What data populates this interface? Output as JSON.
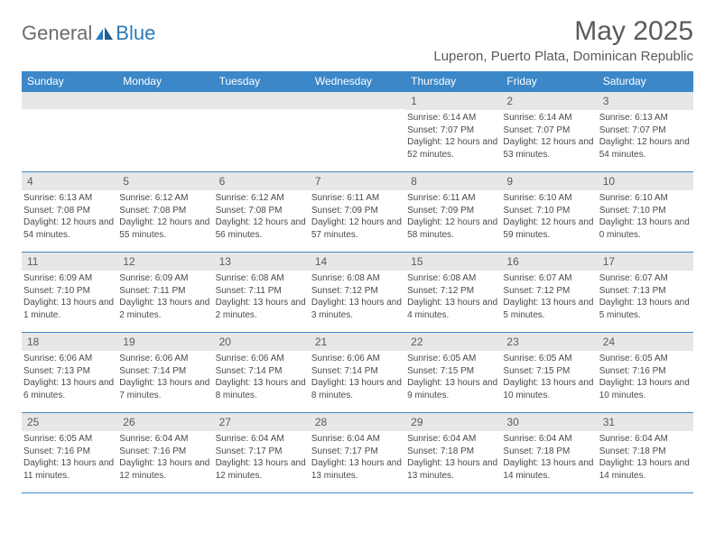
{
  "brand": {
    "part1": "General",
    "part2": "Blue"
  },
  "title": "May 2025",
  "location": "Luperon, Puerto Plata, Dominican Republic",
  "header_bg": "#3b87c8",
  "daynum_bg": "#e7e7e7",
  "weekdays": [
    "Sunday",
    "Monday",
    "Tuesday",
    "Wednesday",
    "Thursday",
    "Friday",
    "Saturday"
  ],
  "weeks": [
    [
      {
        "n": "",
        "sr": "",
        "ss": "",
        "dl": ""
      },
      {
        "n": "",
        "sr": "",
        "ss": "",
        "dl": ""
      },
      {
        "n": "",
        "sr": "",
        "ss": "",
        "dl": ""
      },
      {
        "n": "",
        "sr": "",
        "ss": "",
        "dl": ""
      },
      {
        "n": "1",
        "sr": "Sunrise: 6:14 AM",
        "ss": "Sunset: 7:07 PM",
        "dl": "Daylight: 12 hours and 52 minutes."
      },
      {
        "n": "2",
        "sr": "Sunrise: 6:14 AM",
        "ss": "Sunset: 7:07 PM",
        "dl": "Daylight: 12 hours and 53 minutes."
      },
      {
        "n": "3",
        "sr": "Sunrise: 6:13 AM",
        "ss": "Sunset: 7:07 PM",
        "dl": "Daylight: 12 hours and 54 minutes."
      }
    ],
    [
      {
        "n": "4",
        "sr": "Sunrise: 6:13 AM",
        "ss": "Sunset: 7:08 PM",
        "dl": "Daylight: 12 hours and 54 minutes."
      },
      {
        "n": "5",
        "sr": "Sunrise: 6:12 AM",
        "ss": "Sunset: 7:08 PM",
        "dl": "Daylight: 12 hours and 55 minutes."
      },
      {
        "n": "6",
        "sr": "Sunrise: 6:12 AM",
        "ss": "Sunset: 7:08 PM",
        "dl": "Daylight: 12 hours and 56 minutes."
      },
      {
        "n": "7",
        "sr": "Sunrise: 6:11 AM",
        "ss": "Sunset: 7:09 PM",
        "dl": "Daylight: 12 hours and 57 minutes."
      },
      {
        "n": "8",
        "sr": "Sunrise: 6:11 AM",
        "ss": "Sunset: 7:09 PM",
        "dl": "Daylight: 12 hours and 58 minutes."
      },
      {
        "n": "9",
        "sr": "Sunrise: 6:10 AM",
        "ss": "Sunset: 7:10 PM",
        "dl": "Daylight: 12 hours and 59 minutes."
      },
      {
        "n": "10",
        "sr": "Sunrise: 6:10 AM",
        "ss": "Sunset: 7:10 PM",
        "dl": "Daylight: 13 hours and 0 minutes."
      }
    ],
    [
      {
        "n": "11",
        "sr": "Sunrise: 6:09 AM",
        "ss": "Sunset: 7:10 PM",
        "dl": "Daylight: 13 hours and 1 minute."
      },
      {
        "n": "12",
        "sr": "Sunrise: 6:09 AM",
        "ss": "Sunset: 7:11 PM",
        "dl": "Daylight: 13 hours and 2 minutes."
      },
      {
        "n": "13",
        "sr": "Sunrise: 6:08 AM",
        "ss": "Sunset: 7:11 PM",
        "dl": "Daylight: 13 hours and 2 minutes."
      },
      {
        "n": "14",
        "sr": "Sunrise: 6:08 AM",
        "ss": "Sunset: 7:12 PM",
        "dl": "Daylight: 13 hours and 3 minutes."
      },
      {
        "n": "15",
        "sr": "Sunrise: 6:08 AM",
        "ss": "Sunset: 7:12 PM",
        "dl": "Daylight: 13 hours and 4 minutes."
      },
      {
        "n": "16",
        "sr": "Sunrise: 6:07 AM",
        "ss": "Sunset: 7:12 PM",
        "dl": "Daylight: 13 hours and 5 minutes."
      },
      {
        "n": "17",
        "sr": "Sunrise: 6:07 AM",
        "ss": "Sunset: 7:13 PM",
        "dl": "Daylight: 13 hours and 5 minutes."
      }
    ],
    [
      {
        "n": "18",
        "sr": "Sunrise: 6:06 AM",
        "ss": "Sunset: 7:13 PM",
        "dl": "Daylight: 13 hours and 6 minutes."
      },
      {
        "n": "19",
        "sr": "Sunrise: 6:06 AM",
        "ss": "Sunset: 7:14 PM",
        "dl": "Daylight: 13 hours and 7 minutes."
      },
      {
        "n": "20",
        "sr": "Sunrise: 6:06 AM",
        "ss": "Sunset: 7:14 PM",
        "dl": "Daylight: 13 hours and 8 minutes."
      },
      {
        "n": "21",
        "sr": "Sunrise: 6:06 AM",
        "ss": "Sunset: 7:14 PM",
        "dl": "Daylight: 13 hours and 8 minutes."
      },
      {
        "n": "22",
        "sr": "Sunrise: 6:05 AM",
        "ss": "Sunset: 7:15 PM",
        "dl": "Daylight: 13 hours and 9 minutes."
      },
      {
        "n": "23",
        "sr": "Sunrise: 6:05 AM",
        "ss": "Sunset: 7:15 PM",
        "dl": "Daylight: 13 hours and 10 minutes."
      },
      {
        "n": "24",
        "sr": "Sunrise: 6:05 AM",
        "ss": "Sunset: 7:16 PM",
        "dl": "Daylight: 13 hours and 10 minutes."
      }
    ],
    [
      {
        "n": "25",
        "sr": "Sunrise: 6:05 AM",
        "ss": "Sunset: 7:16 PM",
        "dl": "Daylight: 13 hours and 11 minutes."
      },
      {
        "n": "26",
        "sr": "Sunrise: 6:04 AM",
        "ss": "Sunset: 7:16 PM",
        "dl": "Daylight: 13 hours and 12 minutes."
      },
      {
        "n": "27",
        "sr": "Sunrise: 6:04 AM",
        "ss": "Sunset: 7:17 PM",
        "dl": "Daylight: 13 hours and 12 minutes."
      },
      {
        "n": "28",
        "sr": "Sunrise: 6:04 AM",
        "ss": "Sunset: 7:17 PM",
        "dl": "Daylight: 13 hours and 13 minutes."
      },
      {
        "n": "29",
        "sr": "Sunrise: 6:04 AM",
        "ss": "Sunset: 7:18 PM",
        "dl": "Daylight: 13 hours and 13 minutes."
      },
      {
        "n": "30",
        "sr": "Sunrise: 6:04 AM",
        "ss": "Sunset: 7:18 PM",
        "dl": "Daylight: 13 hours and 14 minutes."
      },
      {
        "n": "31",
        "sr": "Sunrise: 6:04 AM",
        "ss": "Sunset: 7:18 PM",
        "dl": "Daylight: 13 hours and 14 minutes."
      }
    ]
  ]
}
